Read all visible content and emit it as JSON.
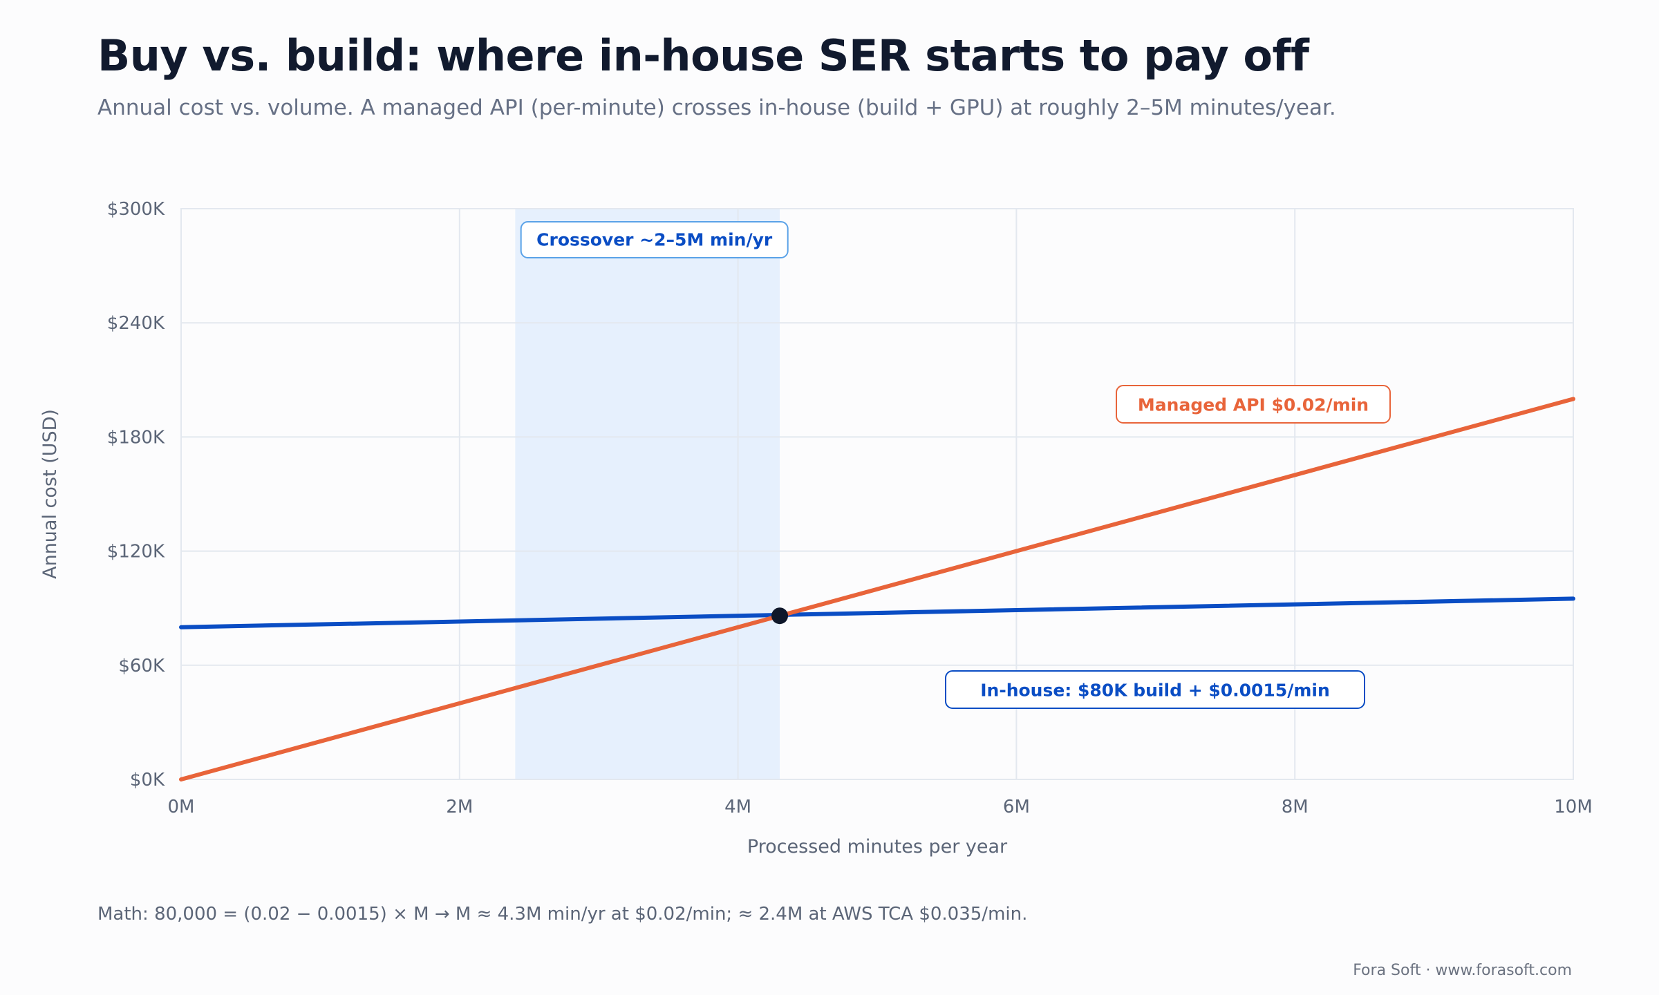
{
  "title": "Buy vs. build: where in-house SER starts to pay off",
  "subtitle": "Annual cost vs. volume. A managed API (per-minute) crosses in-house (build + GPU) at roughly 2–5M minutes/year.",
  "footnote": "Math: 80,000 = (0.02 − 0.0015) × M → M ≈ 4.3M min/yr at $0.02/min; ≈ 2.4M at AWS TCA $0.035/min.",
  "credit": "Fora Soft · www.forasoft.com",
  "colors": {
    "managed": "#e8643a",
    "inhouse": "#0a4dc4",
    "band": "#e6f0fd",
    "grid": "#e3e8ef",
    "marker": "#0f172a"
  },
  "chart_data": {
    "type": "line",
    "xlabel": "Processed minutes per year",
    "ylabel": "Annual cost (USD)",
    "xlim": [
      0,
      10
    ],
    "ylim": [
      0,
      300
    ],
    "x_ticks": [
      0,
      2,
      4,
      6,
      8,
      10
    ],
    "x_tick_labels": [
      "0M",
      "2M",
      "4M",
      "6M",
      "8M",
      "10M"
    ],
    "y_ticks": [
      0,
      60,
      120,
      180,
      240,
      300
    ],
    "y_tick_labels": [
      "$0K",
      "$60K",
      "$120K",
      "$180K",
      "$240K",
      "$300K"
    ],
    "grid": true,
    "series": [
      {
        "key": "managed",
        "x": [
          0,
          10
        ],
        "y": [
          0,
          200
        ]
      },
      {
        "key": "inhouse",
        "x": [
          0,
          10
        ],
        "y": [
          80,
          95
        ]
      }
    ],
    "crossover_band": {
      "x_start": 2.4,
      "x_end": 4.3,
      "label": "Crossover ~2–5M min/yr"
    },
    "crossover_point": {
      "x": 4.3,
      "y": 86
    },
    "annotations": [
      {
        "key": "managed",
        "text": "Managed API $0.02/min"
      },
      {
        "key": "inhouse",
        "text": "In-house: $80K build + $0.0015/min"
      }
    ]
  }
}
